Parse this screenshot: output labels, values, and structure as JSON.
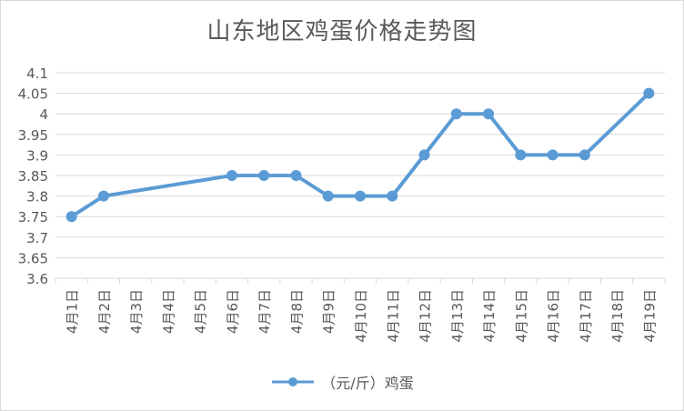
{
  "chart_data": {
    "type": "line",
    "title": "山东地区鸡蛋价格走势图",
    "categories": [
      "4月1日",
      "4月2日",
      "4月3日",
      "4月4日",
      "4月5日",
      "4月6日",
      "4月7日",
      "4月8日",
      "4月9日",
      "4月10日",
      "4月11日",
      "4月12日",
      "4月13日",
      "4月14日",
      "4月15日",
      "4月16日",
      "4月17日",
      "4月18日",
      "4月19日"
    ],
    "series": [
      {
        "name": "（元/斤）鸡蛋",
        "color": "#5b9bd5",
        "values": [
          3.75,
          3.8,
          null,
          null,
          null,
          3.85,
          3.85,
          3.85,
          3.8,
          3.8,
          3.8,
          3.9,
          4.0,
          4.0,
          3.9,
          3.9,
          3.9,
          null,
          4.05
        ]
      }
    ],
    "yticks": [
      "3.6",
      "3.65",
      "3.7",
      "3.75",
      "3.8",
      "3.85",
      "3.9",
      "3.95",
      "4",
      "4.05",
      "4.1"
    ],
    "ylim": [
      3.6,
      4.1
    ],
    "xlabel": "",
    "ylabel": "",
    "grid": true,
    "legend_position": "bottom"
  }
}
